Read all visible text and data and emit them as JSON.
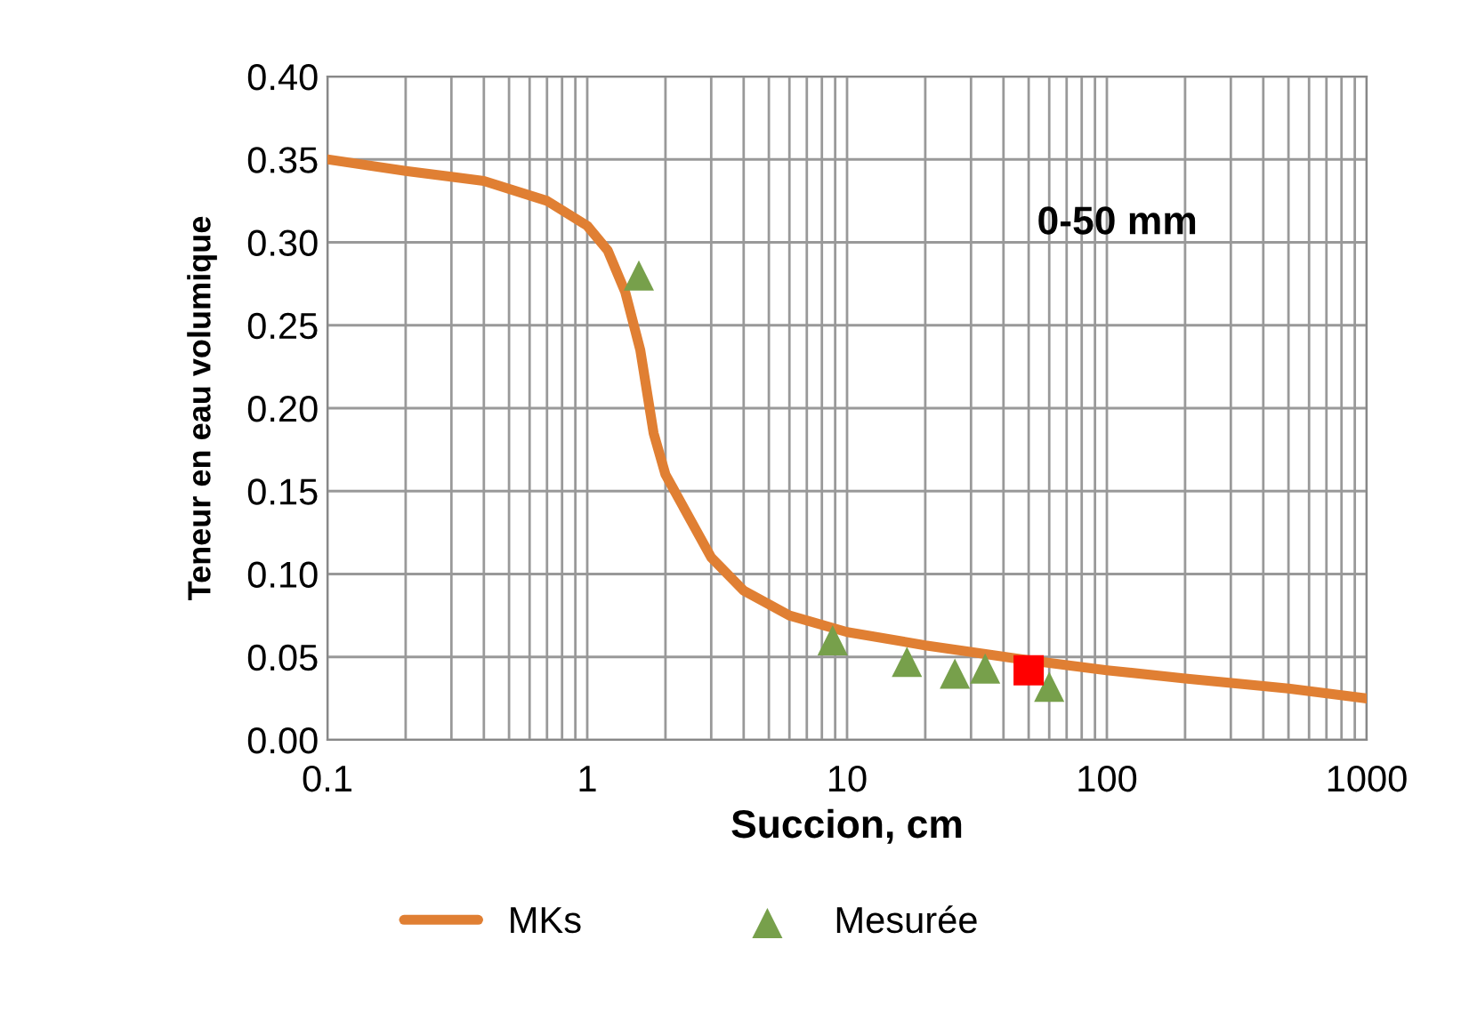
{
  "chart_data": {
    "type": "line",
    "xlabel": "Succion, cm",
    "ylabel": "Teneur en eau volumique",
    "log": "x",
    "xlim": [
      0.1,
      1000
    ],
    "xticks": [
      0.1,
      1,
      10,
      100,
      1000
    ],
    "ylim": [
      0,
      0.4
    ],
    "yticks": [
      {
        "value": 0,
        "label": "0.00"
      },
      {
        "value": 0.05,
        "label": "0.05"
      },
      {
        "value": 0.1,
        "label": "0.10"
      },
      {
        "value": 0.15,
        "label": "0.15"
      },
      {
        "value": 0.2,
        "label": "0.20"
      },
      {
        "value": 0.25,
        "label": "0.25"
      },
      {
        "value": 0.3,
        "label": "0.30"
      },
      {
        "value": 0.35,
        "label": "0.35"
      },
      {
        "value": 0.4,
        "label": "0.40"
      }
    ],
    "grid": true,
    "legend": "bottom",
    "annotations": [
      "0-50 mm"
    ],
    "series": [
      {
        "name": "MKs",
        "color": "#e07f33",
        "marker": "none",
        "x": [
          0.1,
          0.2,
          0.4,
          0.7,
          1.0,
          1.2,
          1.4,
          1.6,
          1.8,
          2,
          3,
          4,
          6,
          10,
          20,
          50,
          100,
          200,
          500,
          1000
        ],
        "values": [
          0.35,
          0.343,
          0.337,
          0.325,
          0.31,
          0.295,
          0.27,
          0.235,
          0.185,
          0.16,
          0.11,
          0.09,
          0.075,
          0.065,
          0.057,
          0.048,
          0.042,
          0.037,
          0.031,
          0.025
        ]
      },
      {
        "name": "Mesurée",
        "type": "scatter",
        "color": "#77a04b",
        "marker": "triangle",
        "x": [
          1.58,
          8.8,
          17,
          26,
          34,
          60
        ],
        "values": [
          0.28,
          0.06,
          0.047,
          0.04,
          0.043,
          0.032
        ]
      },
      {
        "type": "scatter",
        "color": "#ff0000",
        "marker": "square",
        "x": [
          50
        ],
        "values": [
          0.042
        ]
      }
    ]
  }
}
